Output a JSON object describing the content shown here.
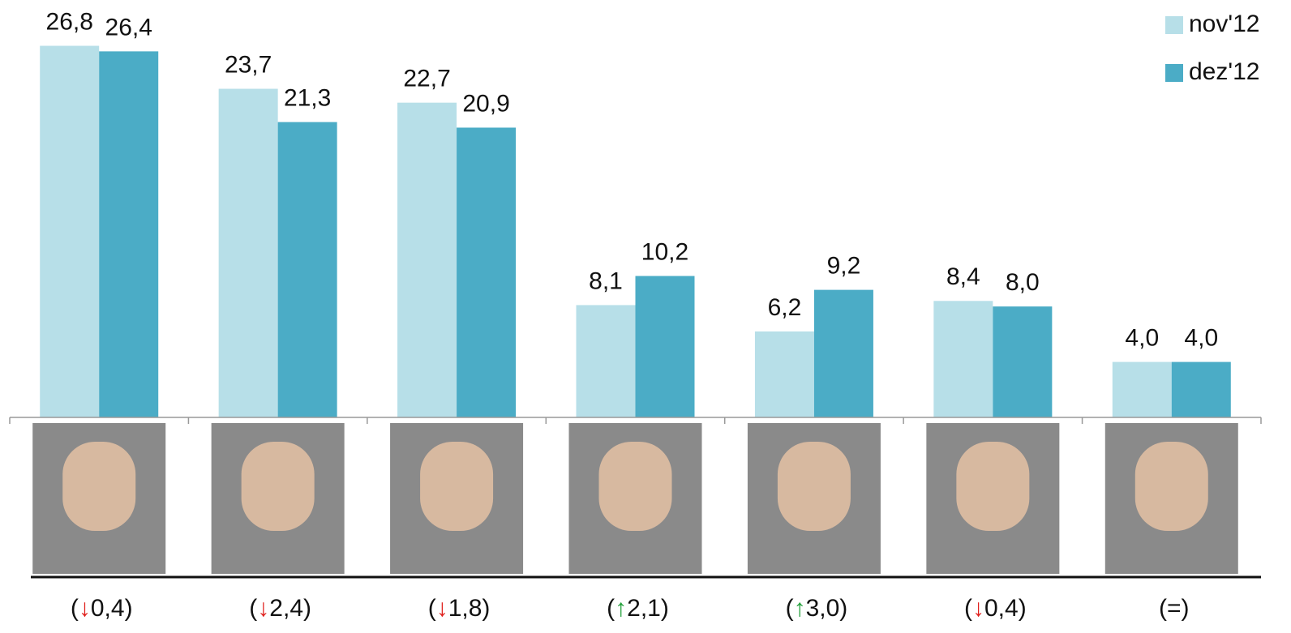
{
  "chart_data": {
    "type": "bar",
    "categories": [
      null,
      null,
      null,
      null,
      null,
      null,
      null
    ],
    "series": [
      {
        "name": "nov'12",
        "color": "#b7dfe8",
        "values": [
          26.8,
          23.7,
          22.7,
          8.1,
          6.2,
          8.4,
          4.0
        ],
        "value_labels": [
          "26,8",
          "23,7",
          "22,7",
          "8,1",
          "6,2",
          "8,4",
          "4,0"
        ]
      },
      {
        "name": "dez'12",
        "color": "#4bacc6",
        "values": [
          26.4,
          21.3,
          20.9,
          10.2,
          9.2,
          8.0,
          4.0
        ],
        "value_labels": [
          "26,4",
          "21,3",
          "20,9",
          "10,2",
          "9,2",
          "8,0",
          "4,0"
        ]
      }
    ],
    "ylim": [
      0,
      28
    ],
    "annotations": [
      "(↓0,4)",
      "(↓2,4)",
      "(↓1,8)",
      "(↑2,1)",
      "(↑3,0)",
      "(↓0,4)",
      "(=)"
    ],
    "legend": "top-right"
  }
}
